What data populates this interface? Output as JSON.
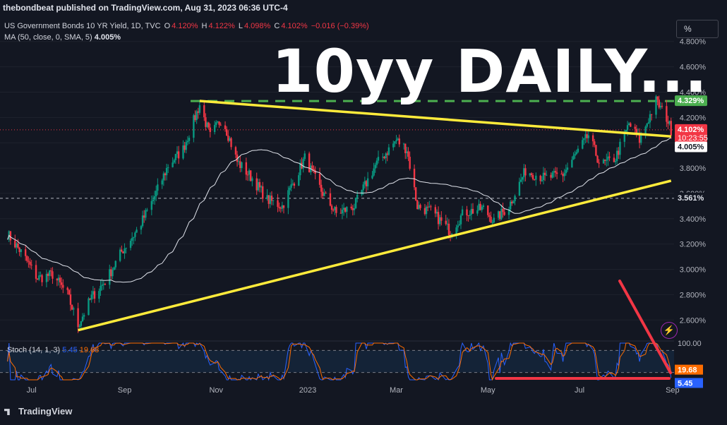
{
  "publish_line": "thebondbeat published on TradingView.com, Aug 31, 2023 06:36 UTC-4",
  "symbol_line": "US Government Bonds 10 YR Yield, 1D, TVC",
  "ohlc": {
    "o_label": "O",
    "o": "4.120%",
    "h_label": "H",
    "h": "4.122%",
    "l_label": "L",
    "l": "4.098%",
    "c_label": "C",
    "c": "4.102%",
    "change": "−0.016 (−0.39%)"
  },
  "ma_legend": {
    "label": "MA (50, close, 0, SMA, 5)",
    "value": "4.005%"
  },
  "scale_button": "%",
  "big_title": "10yy DAILY...",
  "stoch_legend": {
    "label": "Stoch (14, 1, 3)",
    "k": "5.45",
    "d": "19.68"
  },
  "brand": "TradingView",
  "colors": {
    "up": "#089981",
    "down": "#f23645",
    "trend": "#ffeb3b",
    "resistance": "#4caf50",
    "ma": "#e0e3eb",
    "stoch_k": "#2962ff",
    "stoch_d": "#ff6d00",
    "arrow": "#f23645"
  },
  "icons": {
    "lightning": "lightning-icon",
    "logo": "tradingview-logo-icon"
  },
  "chart_data": {
    "type": "candlestick",
    "price_axis": {
      "ticks": [
        "4.800%",
        "4.600%",
        "4.400%",
        "4.200%",
        "4.000%",
        "3.800%",
        "3.600%",
        "3.400%",
        "3.200%",
        "3.000%",
        "2.800%",
        "2.600%"
      ],
      "tick_values": [
        4.8,
        4.6,
        4.4,
        4.2,
        4.0,
        3.8,
        3.6,
        3.4,
        3.2,
        3.0,
        2.8,
        2.6
      ],
      "ylim": [
        2.44,
        4.96
      ]
    },
    "x_axis": {
      "labels": [
        "Jul",
        "Sep",
        "Nov",
        "2023",
        "Mar",
        "May",
        "Jul",
        "Sep"
      ]
    },
    "price_path": [
      [
        "2022-06-15",
        3.28
      ],
      [
        "2022-06-25",
        3.12
      ],
      [
        "2022-07-05",
        2.93
      ],
      [
        "2022-07-15",
        2.96
      ],
      [
        "2022-07-25",
        2.8
      ],
      [
        "2022-08-01",
        2.56
      ],
      [
        "2022-08-10",
        2.78
      ],
      [
        "2022-08-20",
        2.92
      ],
      [
        "2022-08-30",
        3.14
      ],
      [
        "2022-09-10",
        3.32
      ],
      [
        "2022-09-20",
        3.55
      ],
      [
        "2022-09-30",
        3.82
      ],
      [
        "2022-10-10",
        3.95
      ],
      [
        "2022-10-21",
        4.3
      ],
      [
        "2022-10-28",
        4.05
      ],
      [
        "2022-11-05",
        4.2
      ],
      [
        "2022-11-15",
        3.85
      ],
      [
        "2022-11-25",
        3.72
      ],
      [
        "2022-12-05",
        3.55
      ],
      [
        "2022-12-15",
        3.5
      ],
      [
        "2022-12-30",
        3.88
      ],
      [
        "2023-01-10",
        3.62
      ],
      [
        "2023-01-20",
        3.44
      ],
      [
        "2023-02-01",
        3.5
      ],
      [
        "2023-02-15",
        3.82
      ],
      [
        "2023-03-01",
        4.02
      ],
      [
        "2023-03-08",
        3.95
      ],
      [
        "2023-03-15",
        3.5
      ],
      [
        "2023-03-25",
        3.45
      ],
      [
        "2023-04-06",
        3.3
      ],
      [
        "2023-04-15",
        3.45
      ],
      [
        "2023-04-28",
        3.48
      ],
      [
        "2023-05-05",
        3.38
      ],
      [
        "2023-05-15",
        3.5
      ],
      [
        "2023-05-26",
        3.78
      ],
      [
        "2023-06-08",
        3.72
      ],
      [
        "2023-06-20",
        3.75
      ],
      [
        "2023-07-07",
        4.06
      ],
      [
        "2023-07-15",
        3.82
      ],
      [
        "2023-07-25",
        3.88
      ],
      [
        "2023-08-03",
        4.15
      ],
      [
        "2023-08-10",
        4.02
      ],
      [
        "2023-08-21",
        4.33
      ],
      [
        "2023-08-28",
        4.2
      ],
      [
        "2023-08-31",
        4.102
      ]
    ],
    "last_price": {
      "value": 4.102,
      "label": "4.102%",
      "countdown": "10:23:55"
    },
    "ma50": {
      "label": "MA (50, close, 0, SMA, 5)",
      "last": 4.005,
      "last_label": "4.005%"
    },
    "resistance_line": {
      "value": 4.329,
      "label": "4.329%",
      "style": "dashed",
      "color": "#4caf50"
    },
    "horizontal_line": {
      "value": 3.561,
      "label": "3.561%",
      "style": "dashed",
      "color": "#b2b5be"
    },
    "trendlines": [
      {
        "name": "upper",
        "from": [
          "2022-10-21",
          4.33
        ],
        "to": [
          "2023-08-31",
          4.05
        ]
      },
      {
        "name": "lower",
        "from": [
          "2022-08-01",
          2.52
        ],
        "to": [
          "2023-08-31",
          3.7
        ]
      }
    ],
    "stochastic": {
      "label": "Stoch (14, 1, 3)",
      "k_last": 5.45,
      "d_last": 19.68,
      "k_label": "5.45",
      "d_label": "19.68",
      "upper_band": 80,
      "lower_band": 20,
      "axis_label": "100.00",
      "ylim": [
        0,
        100
      ]
    }
  }
}
